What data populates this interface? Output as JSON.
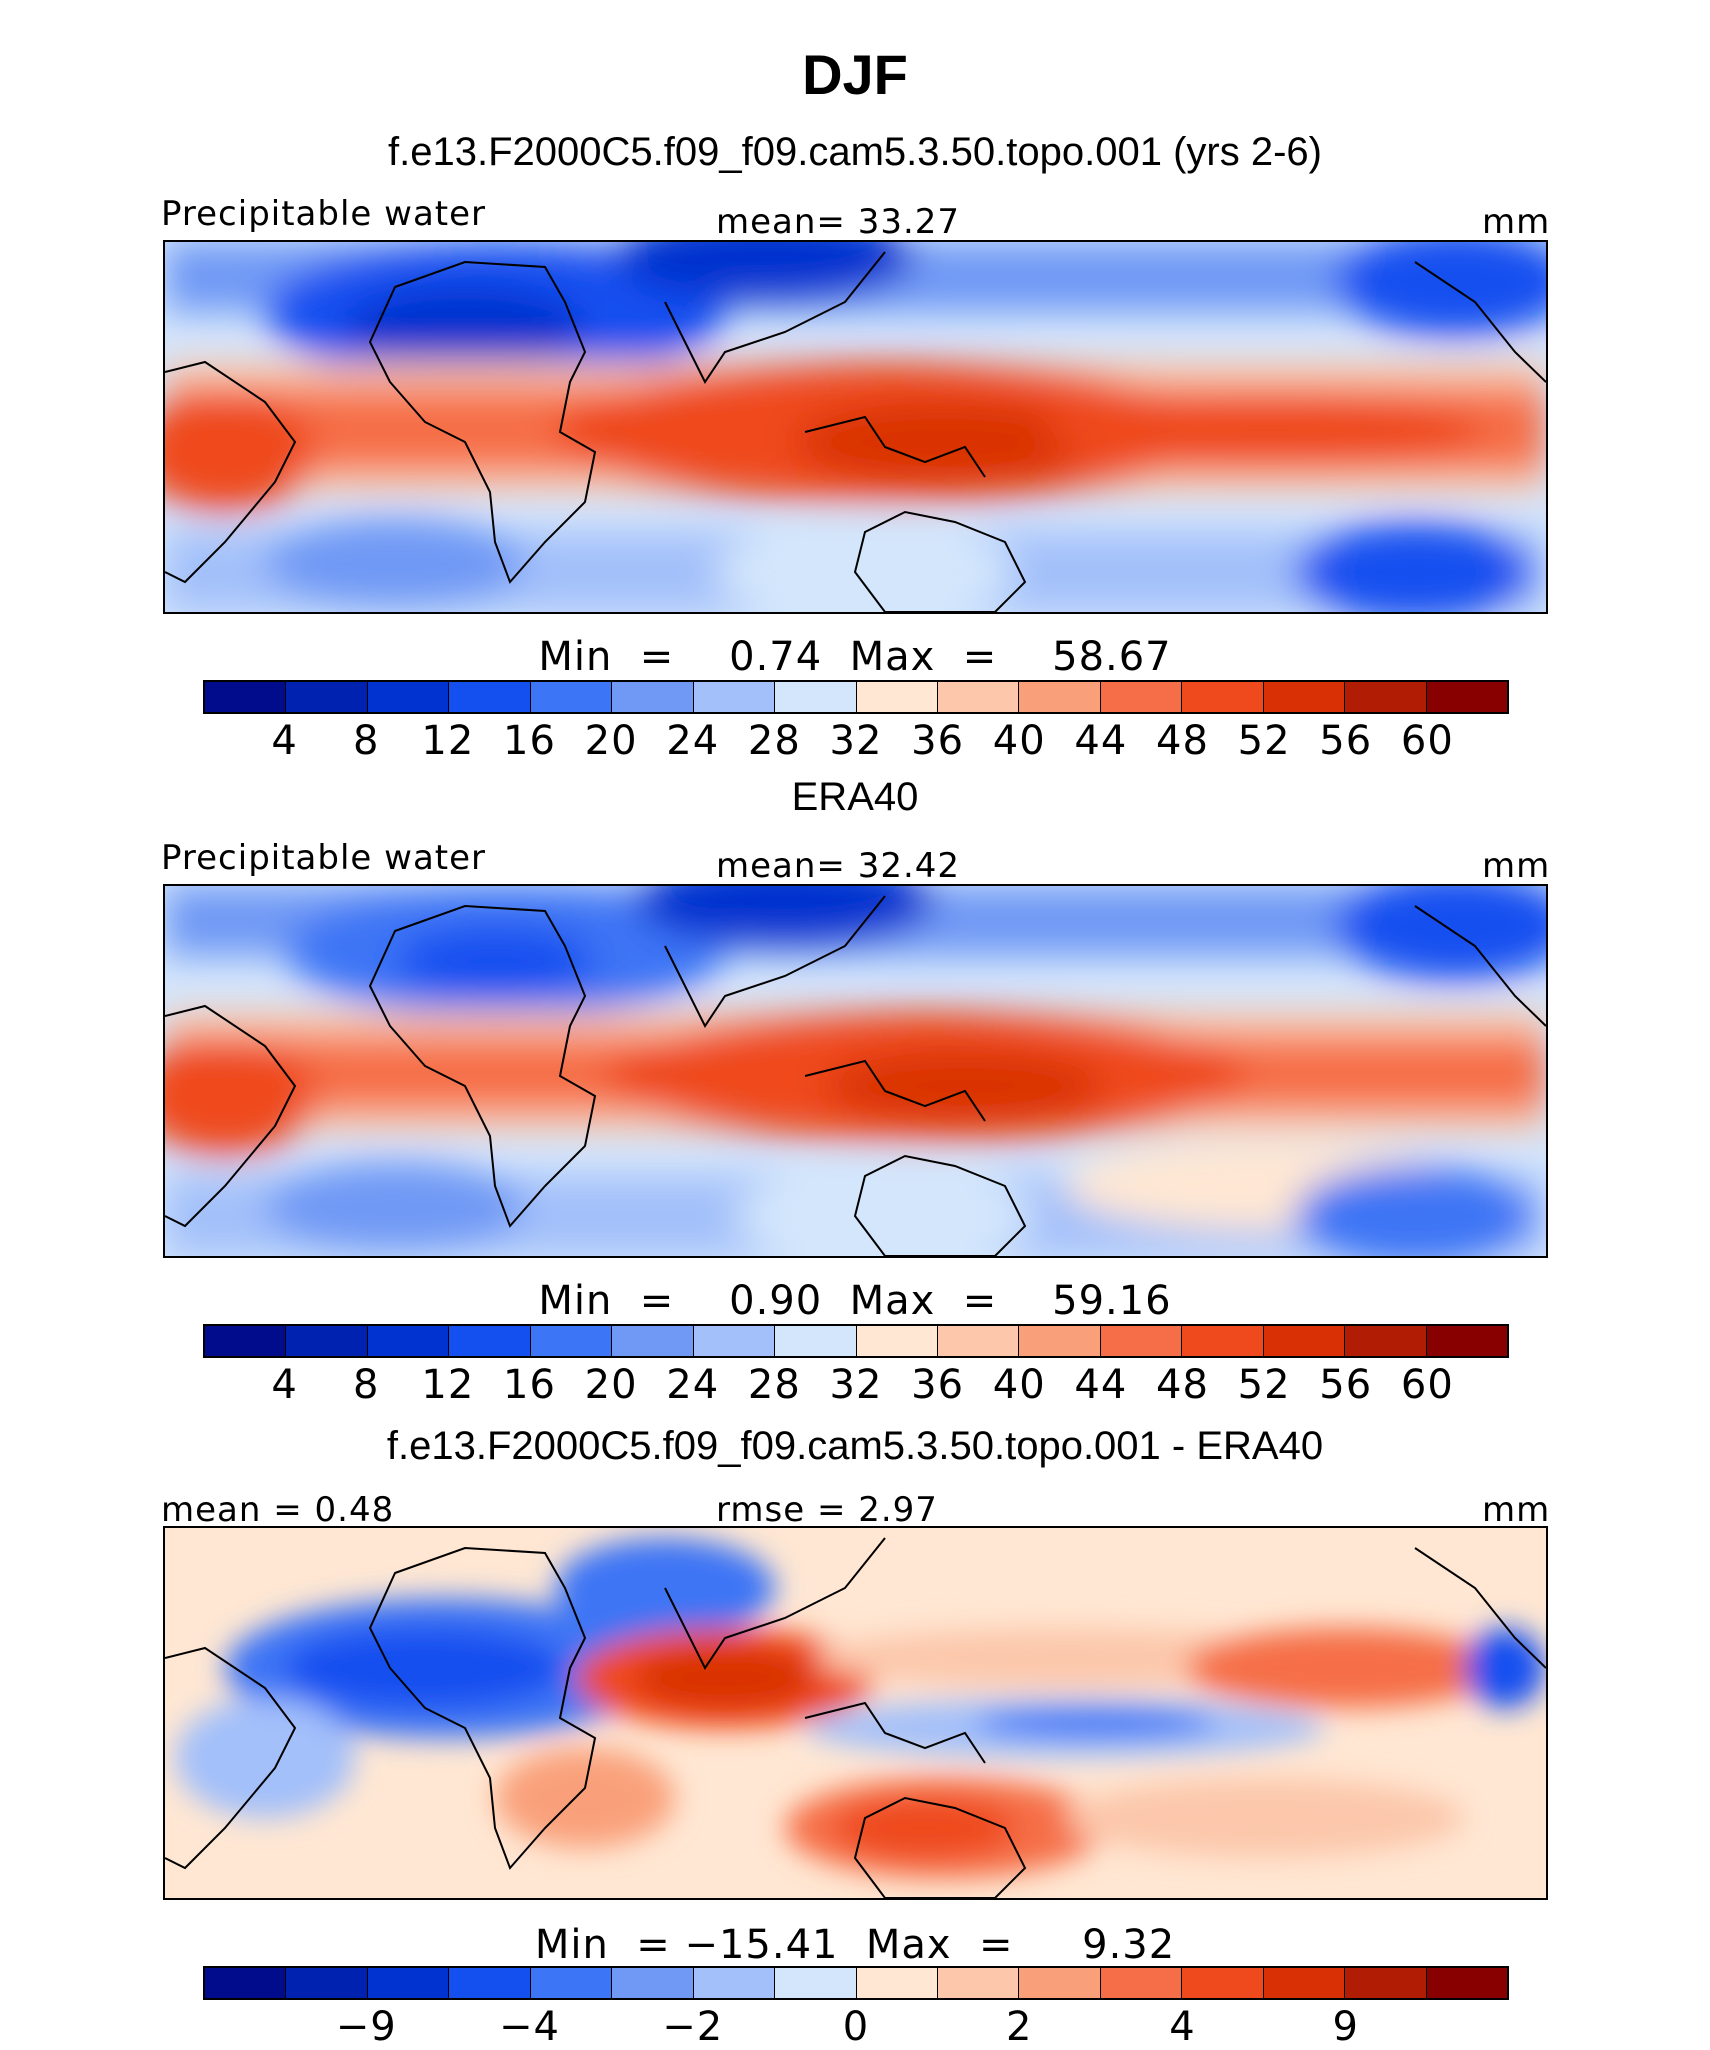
{
  "title": "DJF",
  "panels": [
    {
      "id": "model",
      "title": "f.e13.F2000C5.f09_f09.cam5.3.50.topo.001 (yrs 2-6)",
      "left_label": "Precipitable water",
      "center_label": "mean=   33.27",
      "right_label": "mm",
      "minmax": "Min  =    0.74  Max  =    58.67",
      "tick_labels": [
        "4",
        "8",
        "12",
        "16",
        "20",
        "24",
        "28",
        "32",
        "36",
        "40",
        "44",
        "48",
        "52",
        "56",
        "60"
      ],
      "colors": [
        "#000c8c",
        "#0022b0",
        "#0033cf",
        "#1450f0",
        "#3c75f5",
        "#7099f5",
        "#a3c0fa",
        "#d3e6fc",
        "#ffe7d3",
        "#fcc7ab",
        "#f9a07a",
        "#f56e47",
        "#ef4a1e",
        "#d93006",
        "#b01c04",
        "#880000"
      ]
    },
    {
      "id": "obs",
      "title": "ERA40",
      "left_label": "Precipitable water",
      "center_label": "mean=   32.42",
      "right_label": "mm",
      "minmax": "Min  =    0.90  Max  =    59.16",
      "tick_labels": [
        "4",
        "8",
        "12",
        "16",
        "20",
        "24",
        "28",
        "32",
        "36",
        "40",
        "44",
        "48",
        "52",
        "56",
        "60"
      ],
      "colors": [
        "#000c8c",
        "#0022b0",
        "#0033cf",
        "#1450f0",
        "#3c75f5",
        "#7099f5",
        "#a3c0fa",
        "#d3e6fc",
        "#ffe7d3",
        "#fcc7ab",
        "#f9a07a",
        "#f56e47",
        "#ef4a1e",
        "#d93006",
        "#b01c04",
        "#880000"
      ]
    },
    {
      "id": "diff",
      "title": "f.e13.F2000C5.f09_f09.cam5.3.50.topo.001 - ERA40",
      "left_label": "mean =    0.48",
      "center_label": "rmse =    2.97",
      "right_label": "mm",
      "minmax": "Min  = −15.41  Max  =     9.32",
      "tick_labels": [
        "−9",
        "−4",
        "−2",
        "0",
        "2",
        "4",
        "9"
      ],
      "colors": [
        "#000c8c",
        "#0022b0",
        "#0033cf",
        "#1450f0",
        "#3c75f5",
        "#7099f5",
        "#a3c0fa",
        "#d3e6fc",
        "#ffe7d3",
        "#fcc7ab",
        "#f9a07a",
        "#f56e47",
        "#ef4a1e",
        "#d93006",
        "#b01c04",
        "#880000"
      ]
    }
  ]
}
